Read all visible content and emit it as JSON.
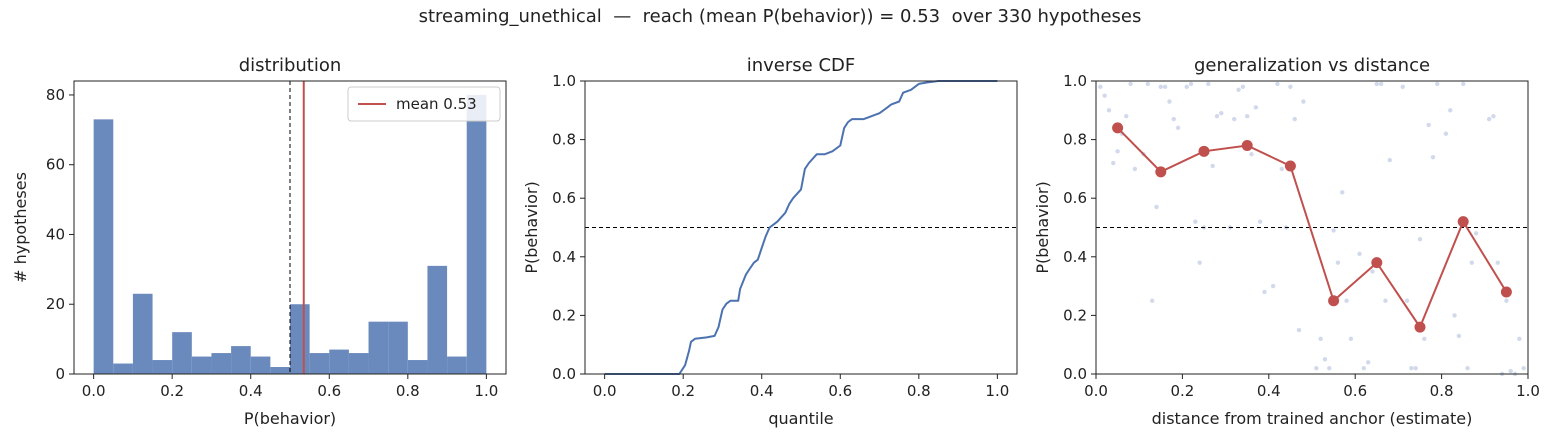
{
  "figure": {
    "suptitle": "streaming_unethical  —  reach (mean P(behavior)) = 0.53  over 330 hypotheses"
  },
  "colors": {
    "bar": "#6a89bc",
    "mean_line": "#c0504d",
    "cdf_line": "#4c72b0",
    "scatter": "#c5d0e6",
    "binned": "#c0504d",
    "reference": "#000000"
  },
  "chart_data": [
    {
      "type": "bar",
      "panel": "distribution",
      "title": "distribution",
      "xlabel": "P(behavior)",
      "ylabel": "# hypotheses",
      "bin_edges": [
        0.0,
        0.05,
        0.1,
        0.15,
        0.2,
        0.25,
        0.3,
        0.35,
        0.4,
        0.45,
        0.5,
        0.55,
        0.6,
        0.65,
        0.7,
        0.75,
        0.8,
        0.85,
        0.9,
        0.95,
        1.0
      ],
      "values": [
        73,
        3,
        23,
        4,
        12,
        5,
        6,
        8,
        5,
        2,
        20,
        6,
        7,
        6,
        15,
        15,
        4,
        31,
        5,
        80
      ],
      "xlim": [
        -0.05,
        1.05
      ],
      "ylim": [
        0,
        84
      ],
      "xticks": [
        "0.0",
        "0.2",
        "0.4",
        "0.6",
        "0.8",
        "1.0"
      ],
      "yticks": [
        "0",
        "20",
        "40",
        "60",
        "80"
      ],
      "mean": 0.535,
      "threshold": 0.5,
      "legend": {
        "label": "mean 0.53",
        "placement": "top-right"
      },
      "grid": false
    },
    {
      "type": "line",
      "panel": "inverse-cdf",
      "title": "inverse CDF",
      "xlabel": "quantile",
      "ylabel": "P(behavior)",
      "xlim": [
        -0.05,
        1.05
      ],
      "ylim": [
        0,
        1
      ],
      "xticks": [
        "0.0",
        "0.2",
        "0.4",
        "0.6",
        "0.8",
        "1.0"
      ],
      "yticks": [
        "0.0",
        "0.2",
        "0.4",
        "0.6",
        "0.8",
        "1.0"
      ],
      "threshold": 0.5,
      "x": [
        0.0,
        0.19,
        0.205,
        0.215,
        0.22,
        0.23,
        0.26,
        0.28,
        0.29,
        0.3,
        0.31,
        0.32,
        0.34,
        0.345,
        0.36,
        0.37,
        0.38,
        0.39,
        0.4,
        0.41,
        0.42,
        0.43,
        0.44,
        0.46,
        0.47,
        0.48,
        0.5,
        0.51,
        0.52,
        0.54,
        0.55,
        0.56,
        0.58,
        0.6,
        0.61,
        0.62,
        0.63,
        0.64,
        0.66,
        0.7,
        0.72,
        0.73,
        0.75,
        0.76,
        0.78,
        0.8,
        0.82,
        0.85,
        1.0
      ],
      "y": [
        0.0,
        0.0,
        0.03,
        0.08,
        0.11,
        0.12,
        0.125,
        0.13,
        0.16,
        0.22,
        0.24,
        0.25,
        0.25,
        0.29,
        0.34,
        0.36,
        0.38,
        0.39,
        0.43,
        0.47,
        0.5,
        0.51,
        0.52,
        0.55,
        0.58,
        0.6,
        0.63,
        0.7,
        0.72,
        0.75,
        0.75,
        0.75,
        0.76,
        0.78,
        0.84,
        0.86,
        0.87,
        0.87,
        0.87,
        0.89,
        0.91,
        0.92,
        0.93,
        0.96,
        0.97,
        0.99,
        0.995,
        1.0,
        1.0
      ],
      "grid": false
    },
    {
      "type": "scatter",
      "panel": "generalization",
      "title": "generalization vs distance",
      "xlabel": "distance from trained anchor (estimate)",
      "ylabel": "P(behavior)",
      "xlim": [
        0,
        1
      ],
      "ylim": [
        0,
        1
      ],
      "xticks": [
        "0.0",
        "0.2",
        "0.4",
        "0.6",
        "0.8",
        "1.0"
      ],
      "yticks": [
        "0.0",
        "0.2",
        "0.4",
        "0.6",
        "0.8",
        "1.0"
      ],
      "threshold": 0.5,
      "binned": {
        "x": [
          0.05,
          0.15,
          0.25,
          0.35,
          0.45,
          0.55,
          0.65,
          0.75,
          0.85,
          0.95
        ],
        "y": [
          0.84,
          0.69,
          0.76,
          0.78,
          0.71,
          0.25,
          0.38,
          0.16,
          0.52,
          0.28
        ]
      },
      "points": {
        "x": [
          0.01,
          0.03,
          0.05,
          0.07,
          0.09,
          0.02,
          0.06,
          0.08,
          0.04,
          0.12,
          0.14,
          0.16,
          0.18,
          0.13,
          0.17,
          0.11,
          0.15,
          0.19,
          0.22,
          0.24,
          0.26,
          0.28,
          0.21,
          0.25,
          0.27,
          0.23,
          0.29,
          0.32,
          0.34,
          0.36,
          0.38,
          0.31,
          0.35,
          0.37,
          0.33,
          0.39,
          0.42,
          0.44,
          0.46,
          0.48,
          0.41,
          0.45,
          0.47,
          0.43,
          0.52,
          0.54,
          0.56,
          0.58,
          0.51,
          0.55,
          0.57,
          0.53,
          0.59,
          0.62,
          0.64,
          0.66,
          0.68,
          0.61,
          0.65,
          0.67,
          0.63,
          0.72,
          0.74,
          0.76,
          0.78,
          0.71,
          0.75,
          0.77,
          0.73,
          0.79,
          0.82,
          0.84,
          0.86,
          0.88,
          0.81,
          0.85,
          0.87,
          0.83,
          0.92,
          0.94,
          0.96,
          0.98,
          0.91,
          0.95,
          0.97,
          0.93,
          0.99
        ],
        "y": [
          0.98,
          0.9,
          0.76,
          0.88,
          0.7,
          0.95,
          0.82,
          0.99,
          0.72,
          0.99,
          0.57,
          0.98,
          0.87,
          0.25,
          0.93,
          0.75,
          0.98,
          0.84,
          0.99,
          0.38,
          0.99,
          0.88,
          0.98,
          0.5,
          0.71,
          0.52,
          0.89,
          0.87,
          0.98,
          0.75,
          0.52,
          0.5,
          0.88,
          0.91,
          0.97,
          0.28,
          0.99,
          0.5,
          0.87,
          0.93,
          0.3,
          0.98,
          0.15,
          0.7,
          0.12,
          0.02,
          0.38,
          0.25,
          0.02,
          0.49,
          0.62,
          0.05,
          0.12,
          0.02,
          0.35,
          0.99,
          0.73,
          0.41,
          0.99,
          0.25,
          0.04,
          0.25,
          0.02,
          0.12,
          0.74,
          0.98,
          0.46,
          0.85,
          0.02,
          0.99,
          0.9,
          0.13,
          0.02,
          0.48,
          0.82,
          0.99,
          0.38,
          0.2,
          0.88,
          0.0,
          0.01,
          0.12,
          0.87,
          0.25,
          0.0,
          0.38,
          0.02
        ]
      },
      "grid": false
    }
  ]
}
